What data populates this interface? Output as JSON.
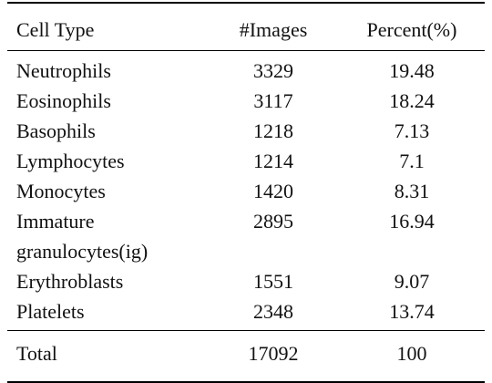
{
  "table": {
    "header": [
      "Cell Type",
      "#Images",
      "Percent(%)"
    ],
    "rows": [
      [
        "Neutrophils",
        "3329",
        "19.48"
      ],
      [
        "Eosinophils",
        "3117",
        "18.24"
      ],
      [
        "Basophils",
        "1218",
        "7.13"
      ],
      [
        "Lymphocytes",
        "1214",
        "7.1"
      ],
      [
        "Monocytes",
        "1420",
        "8.31"
      ],
      [
        "Immature granulocytes(ig)",
        "2895",
        "16.94"
      ],
      [
        "Erythroblasts",
        "1551",
        "9.07"
      ],
      [
        "Platelets",
        "2348",
        "13.74"
      ]
    ],
    "total": [
      "Total",
      "17092",
      "100"
    ]
  }
}
